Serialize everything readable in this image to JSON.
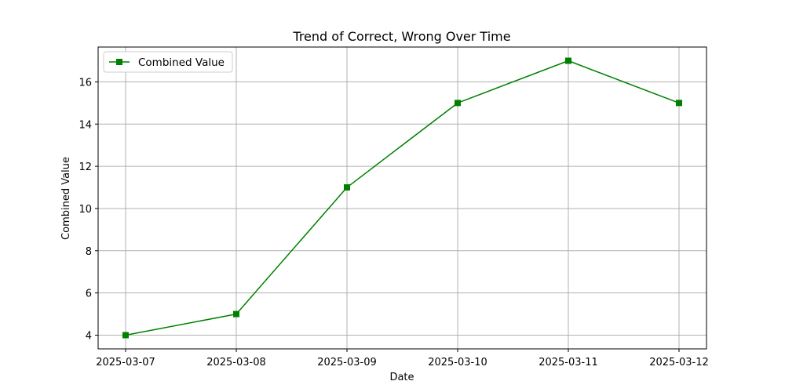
{
  "chart_data": {
    "type": "line",
    "title": "Trend of Correct, Wrong Over Time",
    "xlabel": "Date",
    "ylabel": "Combined Value",
    "x": [
      "2025-03-07",
      "2025-03-08",
      "2025-03-09",
      "2025-03-10",
      "2025-03-11",
      "2025-03-12"
    ],
    "series": [
      {
        "name": "Combined Value",
        "values": [
          4,
          5,
          11,
          15,
          17,
          15
        ],
        "color": "#008000",
        "marker": "square"
      }
    ],
    "yticks": [
      4,
      6,
      8,
      10,
      12,
      14,
      16
    ],
    "ylim": [
      3.35,
      17.65
    ],
    "grid": true,
    "legend_position": "top-left"
  }
}
